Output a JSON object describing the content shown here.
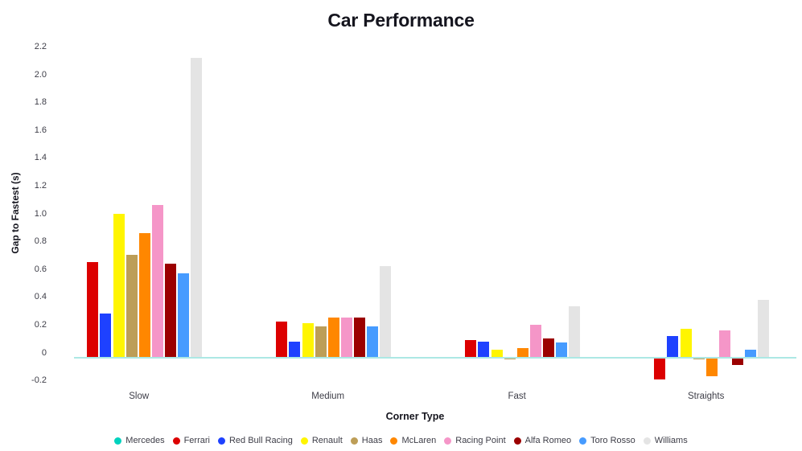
{
  "title": "Car Performance",
  "y_axis": {
    "title": "Gap to Fastest (s)",
    "tick_labels": [
      "2.2",
      "2.0",
      "1.8",
      "1.6",
      "1.4",
      "1.2",
      "1.0",
      "0.8",
      "0.6",
      "0.4",
      "0.2",
      "0",
      "-0.2"
    ],
    "tick_values": [
      2.2,
      2.0,
      1.8,
      1.6,
      1.4,
      1.2,
      1.0,
      0.8,
      0.6,
      0.4,
      0.2,
      0,
      -0.2
    ]
  },
  "x_axis": {
    "title": "Corner Type",
    "categories": [
      "Slow",
      "Medium",
      "Fast",
      "Straights"
    ]
  },
  "colors": {
    "zero_line": "#ACE8E4",
    "title_text": "#15151E",
    "tick_text": "#3d3d47"
  },
  "chart_data": {
    "type": "bar",
    "title": "Car Performance",
    "xlabel": "Corner Type",
    "ylabel": "Gap to Fastest (s)",
    "ylim": [
      -0.2,
      2.2
    ],
    "grid": false,
    "legend_position": "bottom",
    "categories": [
      "Slow",
      "Medium",
      "Fast",
      "Straights"
    ],
    "series": [
      {
        "name": "Mercedes",
        "color": "#00D2BE",
        "values": [
          0.0,
          0.0,
          0.0,
          0.0
        ]
      },
      {
        "name": "Ferrari",
        "color": "#DC0000",
        "values": [
          0.67,
          0.24,
          0.11,
          -0.16
        ]
      },
      {
        "name": "Red Bull Racing",
        "color": "#1E41FF",
        "values": [
          0.3,
          0.1,
          0.1,
          0.14
        ]
      },
      {
        "name": "Renault",
        "color": "#FFF500",
        "values": [
          1.02,
          0.23,
          0.04,
          0.19
        ]
      },
      {
        "name": "Haas",
        "color": "#BD9E57",
        "values": [
          0.72,
          0.21,
          -0.02,
          -0.02
        ]
      },
      {
        "name": "McLaren",
        "color": "#FF8700",
        "values": [
          0.88,
          0.27,
          0.05,
          -0.14
        ]
      },
      {
        "name": "Racing Point",
        "color": "#F596C8",
        "values": [
          1.08,
          0.27,
          0.22,
          0.18
        ]
      },
      {
        "name": "Alfa Romeo",
        "color": "#9B0000",
        "values": [
          0.66,
          0.27,
          0.12,
          -0.06
        ]
      },
      {
        "name": "Toro Rosso",
        "color": "#469BFF",
        "values": [
          0.59,
          0.21,
          0.09,
          0.04
        ]
      },
      {
        "name": "Williams",
        "color": "#E4E4E4",
        "values": [
          2.14,
          0.64,
          0.35,
          0.4
        ]
      }
    ]
  }
}
